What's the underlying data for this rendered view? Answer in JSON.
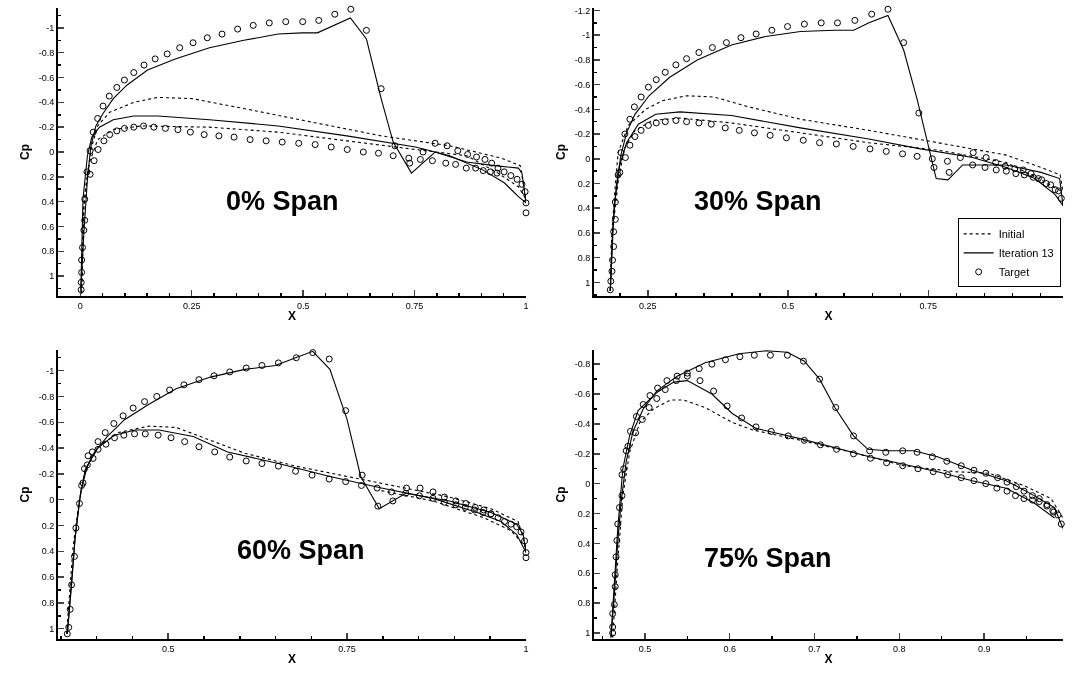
{
  "chart_data": [
    {
      "type": "line",
      "xlabel": "X",
      "ylabel": "Cp",
      "annotations": [
        "0% Span"
      ],
      "xlim": [
        -0.05,
        1.0
      ],
      "ylim": [
        1.16,
        -1.16
      ],
      "xticks": [
        0,
        0.25,
        0.5,
        0.75,
        1
      ],
      "yticks": [
        -1,
        -0.8,
        -0.6,
        -0.4,
        -0.2,
        0,
        0.2,
        0.4,
        0.6,
        0.8,
        1
      ],
      "series": [
        {
          "line_style": "dotted",
          "color": "#000000",
          "x": [
            0.003,
            0.008,
            0.012,
            0.024,
            0.039,
            0.066,
            0.12,
            0.174,
            0.251,
            0.367,
            0.521,
            0.675,
            0.829,
            0.945,
            0.987,
            1.0
          ],
          "values": [
            1.14,
            0.44,
            0.28,
            -0.02,
            -0.21,
            -0.32,
            -0.4,
            -0.44,
            -0.43,
            -0.35,
            -0.24,
            -0.13,
            -0.05,
            0.05,
            0.11,
            0.38
          ]
        },
        {
          "line_style": "dotted",
          "color": "#000000",
          "x": [
            0.003,
            0.008,
            0.02,
            0.039,
            0.074,
            0.136,
            0.29,
            0.444,
            0.598,
            0.752,
            0.867,
            0.937,
            0.983,
            1.0
          ],
          "values": [
            1.14,
            0.44,
            0.09,
            -0.1,
            -0.18,
            -0.21,
            -0.2,
            -0.16,
            -0.09,
            -0.02,
            0.03,
            0.17,
            0.28,
            0.38
          ]
        },
        {
          "line_style": "solid",
          "color": "#000000",
          "x": [
            0.001,
            0.008,
            0.016,
            0.024,
            0.035,
            0.051,
            0.074,
            0.105,
            0.151,
            0.213,
            0.29,
            0.367,
            0.444,
            0.498,
            0.532,
            0.606,
            0.642,
            0.675,
            0.702,
            0.743,
            0.796,
            0.867,
            0.929,
            0.983,
            0.991,
            1.0
          ],
          "values": [
            1.14,
            0.65,
            0.22,
            -0.05,
            -0.21,
            -0.31,
            -0.43,
            -0.54,
            -0.66,
            -0.75,
            -0.84,
            -0.9,
            -0.95,
            -0.96,
            -0.96,
            -1.08,
            -0.91,
            -0.43,
            -0.08,
            0.17,
            0.0,
            0.08,
            0.11,
            0.13,
            0.17,
            0.41
          ]
        },
        {
          "line_style": "solid",
          "color": "#000000",
          "x": [
            0.001,
            0.006,
            0.016,
            0.026,
            0.043,
            0.074,
            0.12,
            0.174,
            0.29,
            0.444,
            0.598,
            0.752,
            0.829,
            0.906,
            0.952,
            0.983,
            1.0
          ],
          "values": [
            1.14,
            0.38,
            0.03,
            -0.12,
            -0.2,
            -0.26,
            -0.29,
            -0.29,
            -0.26,
            -0.21,
            -0.13,
            -0.04,
            0.03,
            0.15,
            0.25,
            0.36,
            0.41
          ]
        },
        {
          "type": "scatter",
          "marker": "circle",
          "color": "#000000",
          "x": [
            0.022,
            0.029,
            0.039,
            0.051,
            0.065,
            0.082,
            0.099,
            0.12,
            0.143,
            0.168,
            0.195,
            0.223,
            0.253,
            0.285,
            0.318,
            0.353,
            0.388,
            0.424,
            0.461,
            0.499,
            0.535,
            0.571,
            0.607,
            0.642,
            0.675,
            0.706,
            0.737,
            0.739,
            0.763,
            0.769,
            0.796,
            0.823,
            0.847,
            0.869,
            0.889,
            0.908,
            0.923,
            0.937,
            0.951,
            0.966,
            0.98,
            0.991,
            0.998,
            1.0,
            1.0,
            0.002,
            0.002,
            0.003,
            0.003,
            0.005,
            0.008,
            0.01,
            0.01,
            0.015,
            0.022,
            0.031,
            0.04,
            0.053,
            0.066,
            0.082,
            0.099,
            0.12,
            0.142,
            0.165,
            0.191,
            0.219,
            0.247,
            0.278,
            0.311,
            0.345,
            0.381,
            0.417,
            0.453,
            0.49,
            0.527,
            0.563,
            0.599,
            0.635,
            0.669,
            0.702,
            0.79,
            0.82,
            0.842,
            0.866,
            0.887,
            0.904,
            0.92,
            0.935
          ],
          "values": [
            -0.01,
            -0.16,
            -0.27,
            -0.37,
            -0.45,
            -0.52,
            -0.58,
            -0.64,
            -0.7,
            -0.75,
            -0.79,
            -0.84,
            -0.88,
            -0.92,
            -0.95,
            -0.99,
            -1.02,
            -1.04,
            -1.05,
            -1.05,
            -1.06,
            -1.11,
            -1.15,
            -0.98,
            -0.51,
            -0.05,
            0.05,
            0.09,
            0.06,
            0.0,
            -0.07,
            -0.05,
            -0.01,
            0.02,
            0.04,
            0.06,
            0.09,
            0.13,
            0.16,
            0.19,
            0.22,
            0.26,
            0.32,
            0.41,
            0.49,
            1.11,
            1.05,
            0.97,
            0.87,
            0.77,
            0.63,
            0.55,
            0.38,
            0.16,
            0.18,
            0.07,
            -0.02,
            -0.09,
            -0.14,
            -0.17,
            -0.19,
            -0.2,
            -0.21,
            -0.2,
            -0.19,
            -0.18,
            -0.16,
            -0.14,
            -0.13,
            -0.12,
            -0.1,
            -0.09,
            -0.08,
            -0.07,
            -0.06,
            -0.04,
            -0.02,
            0.0,
            0.01,
            0.03,
            0.07,
            0.09,
            0.1,
            0.13,
            0.13,
            0.15,
            0.16,
            0.17
          ]
        }
      ]
    },
    {
      "type": "line",
      "xlabel": "X",
      "ylabel": "Cp",
      "legend": "bottom right",
      "annotations": [
        "30% Span"
      ],
      "xlim": [
        0.154,
        0.99
      ],
      "ylim": [
        1.11,
        -1.22
      ],
      "xticks": [
        0.25,
        0.5,
        0.75
      ],
      "yticks": [
        -1.2,
        -1,
        -0.8,
        -0.6,
        -0.4,
        -0.2,
        0,
        0.2,
        0.4,
        0.6,
        0.8,
        1
      ],
      "series": [
        {
          "name": "Initial",
          "line_style": "dotted",
          "color": "#000000",
          "x": [
            0.183,
            0.186,
            0.192,
            0.197,
            0.215,
            0.246,
            0.276,
            0.319,
            0.368,
            0.43,
            0.522,
            0.644,
            0.767,
            0.889,
            0.951,
            0.985,
            0.99
          ],
          "values": [
            1.07,
            0.59,
            0.21,
            -0.05,
            -0.27,
            -0.4,
            -0.47,
            -0.51,
            -0.5,
            -0.42,
            -0.32,
            -0.23,
            -0.13,
            -0.03,
            0.07,
            0.13,
            0.27
          ]
        },
        {
          "line_style": "dotted",
          "color": "#000000",
          "x": [
            0.183,
            0.187,
            0.197,
            0.208,
            0.227,
            0.258,
            0.307,
            0.399,
            0.522,
            0.644,
            0.767,
            0.889,
            0.951,
            0.99
          ],
          "values": [
            1.07,
            0.59,
            0.19,
            -0.08,
            -0.23,
            -0.31,
            -0.33,
            -0.29,
            -0.21,
            -0.13,
            -0.07,
            0.03,
            0.17,
            0.27
          ]
        },
        {
          "name": "Iteration 13",
          "line_style": "solid",
          "color": "#000000",
          "x": [
            0.183,
            0.187,
            0.194,
            0.202,
            0.212,
            0.227,
            0.252,
            0.289,
            0.338,
            0.399,
            0.46,
            0.522,
            0.583,
            0.617,
            0.644,
            0.678,
            0.706,
            0.73,
            0.764,
            0.785,
            0.811,
            0.889,
            0.951,
            0.984,
            0.99
          ],
          "values": [
            1.07,
            0.59,
            0.21,
            -0.03,
            -0.21,
            -0.36,
            -0.51,
            -0.66,
            -0.8,
            -0.92,
            -0.99,
            -1.03,
            -1.04,
            -1.04,
            -1.1,
            -1.16,
            -0.88,
            -0.48,
            0.16,
            0.17,
            0.05,
            0.05,
            0.11,
            0.16,
            0.38
          ]
        },
        {
          "line_style": "solid",
          "color": "#000000",
          "x": [
            0.183,
            0.19,
            0.2,
            0.212,
            0.233,
            0.264,
            0.307,
            0.399,
            0.522,
            0.644,
            0.736,
            0.829,
            0.889,
            0.94,
            0.976,
            0.99
          ],
          "values": [
            1.07,
            0.38,
            0.05,
            -0.13,
            -0.28,
            -0.36,
            -0.38,
            -0.35,
            -0.25,
            -0.16,
            -0.08,
            -0.01,
            0.07,
            0.16,
            0.29,
            0.38
          ]
        },
        {
          "name": "Target",
          "type": "scatter",
          "marker": "circle",
          "color": "#000000",
          "x": [
            0.183,
            0.184,
            0.186,
            0.187,
            0.189,
            0.189,
            0.192,
            0.192,
            0.197,
            0.202,
            0.209,
            0.218,
            0.226,
            0.238,
            0.251,
            0.265,
            0.281,
            0.3,
            0.319,
            0.341,
            0.365,
            0.39,
            0.416,
            0.443,
            0.471,
            0.499,
            0.529,
            0.559,
            0.588,
            0.619,
            0.649,
            0.678,
            0.706,
            0.733,
            0.757,
            0.76,
            0.784,
            0.787,
            0.807,
            0.83,
            0.853,
            0.87,
            0.887,
            0.904,
            0.919,
            0.933,
            0.946,
            0.96,
            0.976,
            0.987,
            0.2,
            0.21,
            0.218,
            0.227,
            0.238,
            0.251,
            0.265,
            0.281,
            0.3,
            0.319,
            0.341,
            0.363,
            0.388,
            0.413,
            0.44,
            0.468,
            0.497,
            0.527,
            0.556,
            0.586,
            0.616,
            0.646,
            0.675,
            0.704,
            0.73,
            0.829,
            0.851,
            0.871,
            0.889,
            0.906,
            0.921,
            0.937,
            0.952,
            0.968,
            0.982
          ],
          "values": [
            1.06,
            0.99,
            0.91,
            0.82,
            0.71,
            0.59,
            0.49,
            0.35,
            0.13,
            -0.05,
            -0.2,
            -0.32,
            -0.42,
            -0.5,
            -0.58,
            -0.64,
            -0.7,
            -0.76,
            -0.81,
            -0.86,
            -0.9,
            -0.94,
            -0.98,
            -1.01,
            -1.04,
            -1.07,
            -1.09,
            -1.1,
            -1.1,
            -1.12,
            -1.17,
            -1.21,
            -0.94,
            -0.37,
            0.0,
            0.07,
            0.02,
            0.11,
            -0.01,
            -0.05,
            -0.01,
            0.03,
            0.06,
            0.08,
            0.09,
            0.12,
            0.16,
            0.2,
            0.25,
            0.32,
            0.11,
            -0.01,
            -0.11,
            -0.18,
            -0.23,
            -0.27,
            -0.29,
            -0.3,
            -0.31,
            -0.3,
            -0.29,
            -0.28,
            -0.25,
            -0.23,
            -0.21,
            -0.19,
            -0.17,
            -0.15,
            -0.13,
            -0.12,
            -0.1,
            -0.08,
            -0.06,
            -0.04,
            -0.02,
            0.05,
            0.07,
            0.09,
            0.1,
            0.12,
            0.13,
            0.15,
            0.17,
            0.21,
            0.26
          ]
        }
      ]
    },
    {
      "type": "line",
      "xlabel": "X",
      "ylabel": "Cp",
      "annotations": [
        "60% Span"
      ],
      "xlim": [
        0.346,
        1.0
      ],
      "ylim": [
        1.08,
        -1.16
      ],
      "xticks": [
        0.5,
        0.75,
        1
      ],
      "yticks": [
        -1,
        -0.8,
        -0.6,
        -0.4,
        -0.2,
        0,
        0.2,
        0.4,
        0.6,
        0.8,
        1
      ],
      "series": [
        {
          "line_style": "dotted",
          "color": "#000000",
          "x": [
            0.358,
            0.367,
            0.375,
            0.384,
            0.401,
            0.43,
            0.473,
            0.511,
            0.559,
            0.607,
            0.678,
            0.75,
            0.822,
            0.893,
            0.951,
            0.989,
            1.0
          ],
          "values": [
            1.04,
            0.37,
            0.03,
            -0.23,
            -0.4,
            -0.52,
            -0.57,
            -0.56,
            -0.46,
            -0.36,
            -0.26,
            -0.18,
            -0.1,
            -0.02,
            0.07,
            0.17,
            0.37
          ]
        },
        {
          "line_style": "dotted",
          "color": "#000000",
          "x": [
            0.798,
            0.87,
            0.941,
            0.979,
            1.0
          ],
          "values": [
            -0.07,
            0.01,
            0.14,
            0.24,
            0.37
          ]
        },
        {
          "line_style": "solid",
          "color": "#000000",
          "x": [
            0.359,
            0.365,
            0.37,
            0.376,
            0.384,
            0.396,
            0.415,
            0.439,
            0.473,
            0.511,
            0.559,
            0.607,
            0.65,
            0.678,
            0.702,
            0.726,
            0.75,
            0.769,
            0.795,
            0.832,
            0.893,
            0.951,
            0.987,
            0.996,
            1.0
          ],
          "values": [
            1.04,
            0.66,
            0.29,
            0.01,
            -0.23,
            -0.36,
            -0.49,
            -0.62,
            -0.74,
            -0.86,
            -0.95,
            -1.01,
            -1.04,
            -1.1,
            -1.15,
            -1.01,
            -0.62,
            -0.18,
            0.07,
            -0.05,
            0.01,
            0.1,
            0.19,
            0.27,
            0.41
          ]
        },
        {
          "line_style": "solid",
          "color": "#000000",
          "x": [
            0.359,
            0.37,
            0.378,
            0.387,
            0.401,
            0.425,
            0.454,
            0.487,
            0.535,
            0.583,
            0.654,
            0.726,
            0.798,
            0.87,
            0.932,
            0.965,
            0.987,
            1.0
          ],
          "values": [
            1.04,
            0.29,
            -0.07,
            -0.26,
            -0.4,
            -0.5,
            -0.54,
            -0.54,
            -0.49,
            -0.37,
            -0.28,
            -0.18,
            -0.09,
            -0.01,
            0.1,
            0.17,
            0.27,
            0.41
          ]
        },
        {
          "type": "scatter",
          "marker": "circle",
          "color": "#000000",
          "x": [
            0.359,
            0.361,
            0.363,
            0.365,
            0.369,
            0.371,
            0.376,
            0.381,
            0.387,
            0.394,
            0.402,
            0.412,
            0.424,
            0.437,
            0.451,
            0.467,
            0.484,
            0.502,
            0.522,
            0.543,
            0.564,
            0.586,
            0.609,
            0.631,
            0.654,
            0.679,
            0.702,
            0.725,
            0.748,
            0.771,
            0.792,
            0.793,
            0.812,
            0.814,
            0.833,
            0.852,
            0.87,
            0.886,
            0.902,
            0.916,
            0.929,
            0.941,
            0.951,
            0.961,
            0.97,
            0.979,
            0.987,
            0.993,
            0.998,
            1.0,
            1.0,
            0.379,
            0.383,
            0.388,
            0.395,
            0.402,
            0.413,
            0.425,
            0.438,
            0.453,
            0.468,
            0.486,
            0.504,
            0.523,
            0.543,
            0.565,
            0.586,
            0.609,
            0.631,
            0.654,
            0.678,
            0.701,
            0.725,
            0.748,
            0.77,
            0.832,
            0.851,
            0.87,
            0.886,
            0.902,
            0.915,
            0.928,
            0.94,
            0.951
          ],
          "values": [
            1.04,
            0.99,
            0.85,
            0.66,
            0.44,
            0.22,
            0.03,
            -0.13,
            -0.27,
            -0.37,
            -0.45,
            -0.52,
            -0.59,
            -0.65,
            -0.71,
            -0.76,
            -0.8,
            -0.85,
            -0.89,
            -0.93,
            -0.96,
            -0.99,
            -1.02,
            -1.04,
            -1.06,
            -1.1,
            -1.14,
            -1.09,
            -0.69,
            -0.19,
            -0.09,
            0.05,
            -0.06,
            0.01,
            -0.09,
            -0.09,
            -0.06,
            -0.02,
            0.01,
            0.03,
            0.06,
            0.08,
            0.11,
            0.14,
            0.17,
            0.19,
            0.21,
            0.25,
            0.32,
            0.41,
            0.45,
            -0.11,
            -0.24,
            -0.34,
            -0.32,
            -0.39,
            -0.43,
            -0.48,
            -0.5,
            -0.51,
            -0.51,
            -0.5,
            -0.48,
            -0.45,
            -0.41,
            -0.37,
            -0.33,
            -0.3,
            -0.28,
            -0.26,
            -0.22,
            -0.19,
            -0.16,
            -0.14,
            -0.11,
            -0.05,
            -0.03,
            -0.01,
            0.02,
            0.04,
            0.06,
            0.08,
            0.1,
            0.11
          ]
        }
      ]
    },
    {
      "type": "line",
      "xlabel": "X",
      "ylabel": "Cp",
      "annotations": [
        "75% Span"
      ],
      "xlim": [
        0.44,
        0.993
      ],
      "ylim": [
        1.04,
        -0.895
      ],
      "xticks": [
        0.5,
        0.6,
        0.7,
        0.8,
        0.9
      ],
      "yticks": [
        -0.8,
        -0.6,
        -0.4,
        -0.2,
        0,
        0.2,
        0.4,
        0.6,
        0.8,
        1
      ],
      "series": [
        {
          "line_style": "dotted",
          "color": "#000000",
          "x": [
            0.462,
            0.468,
            0.474,
            0.482,
            0.494,
            0.51,
            0.53,
            0.546,
            0.571,
            0.603,
            0.627,
            0.684,
            0.744,
            0.805,
            0.866,
            0.906,
            0.946,
            0.979,
            0.993
          ],
          "values": [
            1.03,
            0.52,
            0.08,
            -0.21,
            -0.41,
            -0.5,
            -0.56,
            -0.56,
            -0.51,
            -0.41,
            -0.36,
            -0.29,
            -0.21,
            -0.12,
            -0.08,
            -0.07,
            0.01,
            0.1,
            0.23
          ]
        },
        {
          "line_style": "solid",
          "color": "#000000",
          "x": [
            0.46,
            0.464,
            0.468,
            0.472,
            0.478,
            0.486,
            0.498,
            0.514,
            0.538,
            0.571,
            0.611,
            0.643,
            0.668,
            0.688,
            0.706,
            0.724,
            0.746,
            0.763,
            0.785,
            0.817,
            0.845,
            0.886,
            0.926,
            0.959,
            0.983,
            0.993
          ],
          "values": [
            1.03,
            0.74,
            0.39,
            0.12,
            -0.15,
            -0.35,
            -0.5,
            -0.62,
            -0.72,
            -0.81,
            -0.87,
            -0.89,
            -0.88,
            -0.82,
            -0.7,
            -0.51,
            -0.32,
            -0.23,
            -0.22,
            -0.22,
            -0.18,
            -0.09,
            -0.02,
            0.08,
            0.16,
            0.3
          ]
        },
        {
          "line_style": "solid",
          "color": "#000000",
          "x": [
            0.46,
            0.468,
            0.474,
            0.482,
            0.492,
            0.514,
            0.534,
            0.55,
            0.579,
            0.603,
            0.631,
            0.684,
            0.765,
            0.845,
            0.886,
            0.926,
            0.959,
            0.983
          ],
          "values": [
            1.03,
            0.3,
            -0.1,
            -0.32,
            -0.49,
            -0.61,
            -0.68,
            -0.69,
            -0.6,
            -0.47,
            -0.37,
            -0.3,
            -0.18,
            -0.08,
            -0.02,
            0.03,
            0.13,
            0.23
          ]
        },
        {
          "type": "scatter",
          "marker": "circle",
          "color": "#000000",
          "x": [
            0.462,
            0.462,
            0.462,
            0.464,
            0.465,
            0.465,
            0.466,
            0.467,
            0.468,
            0.47,
            0.473,
            0.473,
            0.478,
            0.483,
            0.49,
            0.498,
            0.506,
            0.515,
            0.526,
            0.538,
            0.55,
            0.564,
            0.579,
            0.595,
            0.612,
            0.629,
            0.648,
            0.668,
            0.687,
            0.706,
            0.725,
            0.746,
            0.765,
            0.784,
            0.804,
            0.821,
            0.839,
            0.856,
            0.873,
            0.888,
            0.902,
            0.916,
            0.927,
            0.938,
            0.947,
            0.957,
            0.965,
            0.974,
            0.981,
            0.987,
            0.991,
            0.475,
            0.48,
            0.489,
            0.497,
            0.505,
            0.514,
            0.524,
            0.537,
            0.55,
            0.565,
            0.581,
            0.597,
            0.614,
            0.631,
            0.649,
            0.669,
            0.688,
            0.707,
            0.726,
            0.746,
            0.766,
            0.785,
            0.804,
            0.822,
            0.84,
            0.857,
            0.873,
            0.888,
            0.902,
            0.915,
            0.927,
            0.937,
            0.947,
            0.957,
            0.965,
            0.974,
            0.982
          ],
          "values": [
            1.0,
            0.96,
            0.87,
            0.81,
            0.69,
            0.61,
            0.49,
            0.38,
            0.27,
            0.16,
            0.08,
            -0.06,
            -0.22,
            -0.35,
            -0.45,
            -0.53,
            -0.59,
            -0.64,
            -0.69,
            -0.72,
            -0.74,
            -0.77,
            -0.8,
            -0.83,
            -0.85,
            -0.86,
            -0.86,
            -0.86,
            -0.82,
            -0.7,
            -0.51,
            -0.32,
            -0.22,
            -0.21,
            -0.22,
            -0.21,
            -0.18,
            -0.15,
            -0.12,
            -0.09,
            -0.07,
            -0.04,
            -0.01,
            0.02,
            0.05,
            0.08,
            0.1,
            0.14,
            0.18,
            0.21,
            0.27,
            -0.1,
            -0.25,
            -0.34,
            -0.43,
            -0.51,
            -0.57,
            -0.63,
            -0.69,
            -0.72,
            -0.69,
            -0.62,
            -0.52,
            -0.44,
            -0.38,
            -0.35,
            -0.32,
            -0.29,
            -0.26,
            -0.23,
            -0.2,
            -0.17,
            -0.14,
            -0.12,
            -0.1,
            -0.08,
            -0.06,
            -0.04,
            -0.02,
            0.0,
            0.03,
            0.05,
            0.08,
            0.1,
            0.11,
            0.12,
            0.15,
            0.19
          ]
        }
      ]
    }
  ]
}
